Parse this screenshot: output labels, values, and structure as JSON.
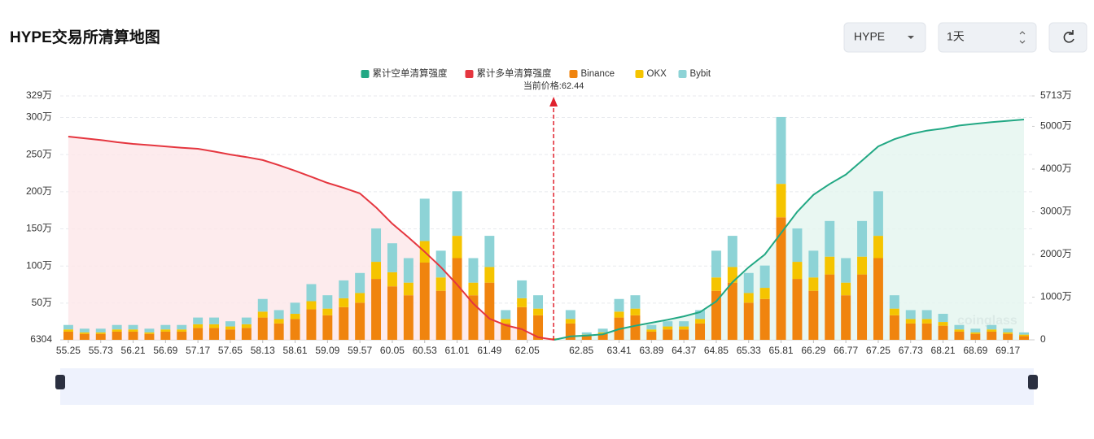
{
  "header": {
    "title": "HYPE交易所清算地图",
    "symbol": "HYPE",
    "interval": "1天"
  },
  "watermark": "coinglass",
  "chart_data": {
    "type": "bar",
    "x": [
      55.25,
      55.49,
      55.73,
      55.97,
      56.21,
      56.45,
      56.69,
      56.93,
      57.17,
      57.41,
      57.65,
      57.89,
      58.13,
      58.37,
      58.61,
      58.85,
      59.09,
      59.33,
      59.57,
      59.81,
      60.05,
      60.29,
      60.53,
      60.77,
      61.01,
      61.25,
      61.49,
      61.73,
      61.97,
      62.21,
      62.45,
      62.69,
      62.93,
      63.17,
      63.41,
      63.65,
      63.89,
      64.13,
      64.37,
      64.61,
      64.85,
      65.09,
      65.33,
      65.57,
      65.81,
      66.05,
      66.29,
      66.53,
      66.77,
      67.01,
      67.25,
      67.49,
      67.73,
      67.97,
      68.21,
      68.45,
      68.69,
      68.93,
      69.17,
      69.41
    ],
    "xlim": [
      55.13,
      69.53
    ],
    "xticks": [
      55.25,
      55.73,
      56.21,
      56.69,
      57.17,
      57.65,
      58.13,
      58.61,
      59.09,
      59.57,
      60.05,
      60.53,
      61.01,
      61.49,
      62.05,
      62.85,
      63.41,
      63.89,
      64.37,
      64.85,
      65.33,
      65.81,
      66.29,
      66.77,
      67.25,
      67.73,
      68.21,
      68.69,
      69.17
    ],
    "ylim": [
      6304,
      3290000
    ],
    "yticks": [
      6304,
      {
        "value": 500000,
        "label": "50万"
      },
      {
        "value": 1000000,
        "label": "100万"
      },
      {
        "value": 1500000,
        "label": "150万"
      },
      {
        "value": 2000000,
        "label": "200万"
      },
      {
        "value": 2500000,
        "label": "250万"
      },
      {
        "value": 3000000,
        "label": "300万"
      },
      {
        "value": 3290000,
        "label": "329万"
      }
    ],
    "y2lim": [
      0,
      57130000
    ],
    "y2ticks": [
      0,
      {
        "value": 10000000,
        "label": "1000万"
      },
      {
        "value": 20000000,
        "label": "2000万"
      },
      {
        "value": 30000000,
        "label": "3000万"
      },
      {
        "value": 40000000,
        "label": "4000万"
      },
      {
        "value": 50000000,
        "label": "5000万"
      },
      {
        "value": 57130000,
        "label": "5713万"
      }
    ],
    "grid": true,
    "current_price": {
      "label": "当前价格:62.44",
      "value": 62.44,
      "color": "#e0222e"
    },
    "series": [
      {
        "name": "累计空单清算强度",
        "color": "#22a884",
        "type": "line",
        "axis": "y2",
        "fill": "#e4f5ef",
        "values": [
          null,
          null,
          null,
          null,
          null,
          null,
          null,
          null,
          null,
          null,
          null,
          null,
          null,
          null,
          null,
          null,
          null,
          null,
          null,
          null,
          null,
          null,
          null,
          null,
          null,
          null,
          null,
          null,
          null,
          null,
          0,
          800000,
          1000000,
          1300000,
          2500000,
          3300000,
          4000000,
          4700000,
          5500000,
          6500000,
          9000000,
          13500000,
          17000000,
          20000000,
          25000000,
          30000000,
          34000000,
          36500000,
          38700000,
          42000000,
          45300000,
          47000000,
          48200000,
          49000000,
          49500000,
          50200000,
          50600000,
          51000000,
          51300000,
          51600000
        ]
      },
      {
        "name": "累计多单清算强度",
        "color": "#e5363f",
        "type": "line",
        "axis": "y2",
        "fill": "#fde6e8",
        "values": [
          47600000,
          47200000,
          46800000,
          46300000,
          45900000,
          45600000,
          45300000,
          45000000,
          44750000,
          44100000,
          43400000,
          42800000,
          42100000,
          40900000,
          39600000,
          38200000,
          36750000,
          35600000,
          34300000,
          31000000,
          27200000,
          24000000,
          20600000,
          17000000,
          12950000,
          8500000,
          4950000,
          3400000,
          2500000,
          600000,
          0,
          null,
          null,
          null,
          null,
          null,
          null,
          null,
          null,
          null,
          null,
          null,
          null,
          null,
          null,
          null,
          null,
          null,
          null,
          null,
          null,
          null,
          null,
          null,
          null,
          null,
          null,
          null,
          null,
          null
        ]
      },
      {
        "name": "Binance",
        "color": "#f0840e",
        "type": "bar",
        "values": [
          110000,
          80000,
          80000,
          110000,
          110000,
          80000,
          110000,
          110000,
          160000,
          160000,
          140000,
          160000,
          300000,
          220000,
          280000,
          410000,
          330000,
          440000,
          500000,
          820000,
          720000,
          600000,
          1040000,
          660000,
          1100000,
          600000,
          770000,
          220000,
          440000,
          330000,
          10000,
          220000,
          50000,
          80000,
          300000,
          330000,
          110000,
          140000,
          140000,
          220000,
          660000,
          770000,
          500000,
          550000,
          1650000,
          820000,
          660000,
          880000,
          600000,
          880000,
          1100000,
          330000,
          220000,
          220000,
          190000,
          110000,
          80000,
          110000,
          80000,
          50000
        ]
      },
      {
        "name": "OKX",
        "color": "#f5c400",
        "type": "bar",
        "values": [
          30000,
          20000,
          20000,
          30000,
          30000,
          20000,
          30000,
          30000,
          50000,
          50000,
          40000,
          50000,
          80000,
          60000,
          70000,
          110000,
          90000,
          120000,
          130000,
          230000,
          190000,
          170000,
          290000,
          180000,
          300000,
          170000,
          210000,
          60000,
          120000,
          90000,
          10000,
          60000,
          20000,
          20000,
          80000,
          90000,
          30000,
          40000,
          40000,
          60000,
          180000,
          210000,
          130000,
          150000,
          450000,
          230000,
          180000,
          240000,
          170000,
          240000,
          300000,
          90000,
          60000,
          60000,
          50000,
          30000,
          20000,
          30000,
          20000,
          20000
        ]
      },
      {
        "name": "Bybit",
        "color": "#8dd3d6",
        "type": "bar",
        "values": [
          60000,
          50000,
          50000,
          60000,
          60000,
          50000,
          60000,
          60000,
          90000,
          90000,
          70000,
          90000,
          170000,
          120000,
          150000,
          230000,
          180000,
          240000,
          270000,
          450000,
          390000,
          330000,
          570000,
          360000,
          600000,
          330000,
          420000,
          120000,
          240000,
          180000,
          0,
          120000,
          30000,
          50000,
          170000,
          180000,
          60000,
          70000,
          70000,
          120000,
          360000,
          420000,
          270000,
          300000,
          900000,
          450000,
          360000,
          480000,
          330000,
          480000,
          600000,
          180000,
          120000,
          120000,
          110000,
          60000,
          50000,
          60000,
          50000,
          30000
        ]
      }
    ]
  }
}
